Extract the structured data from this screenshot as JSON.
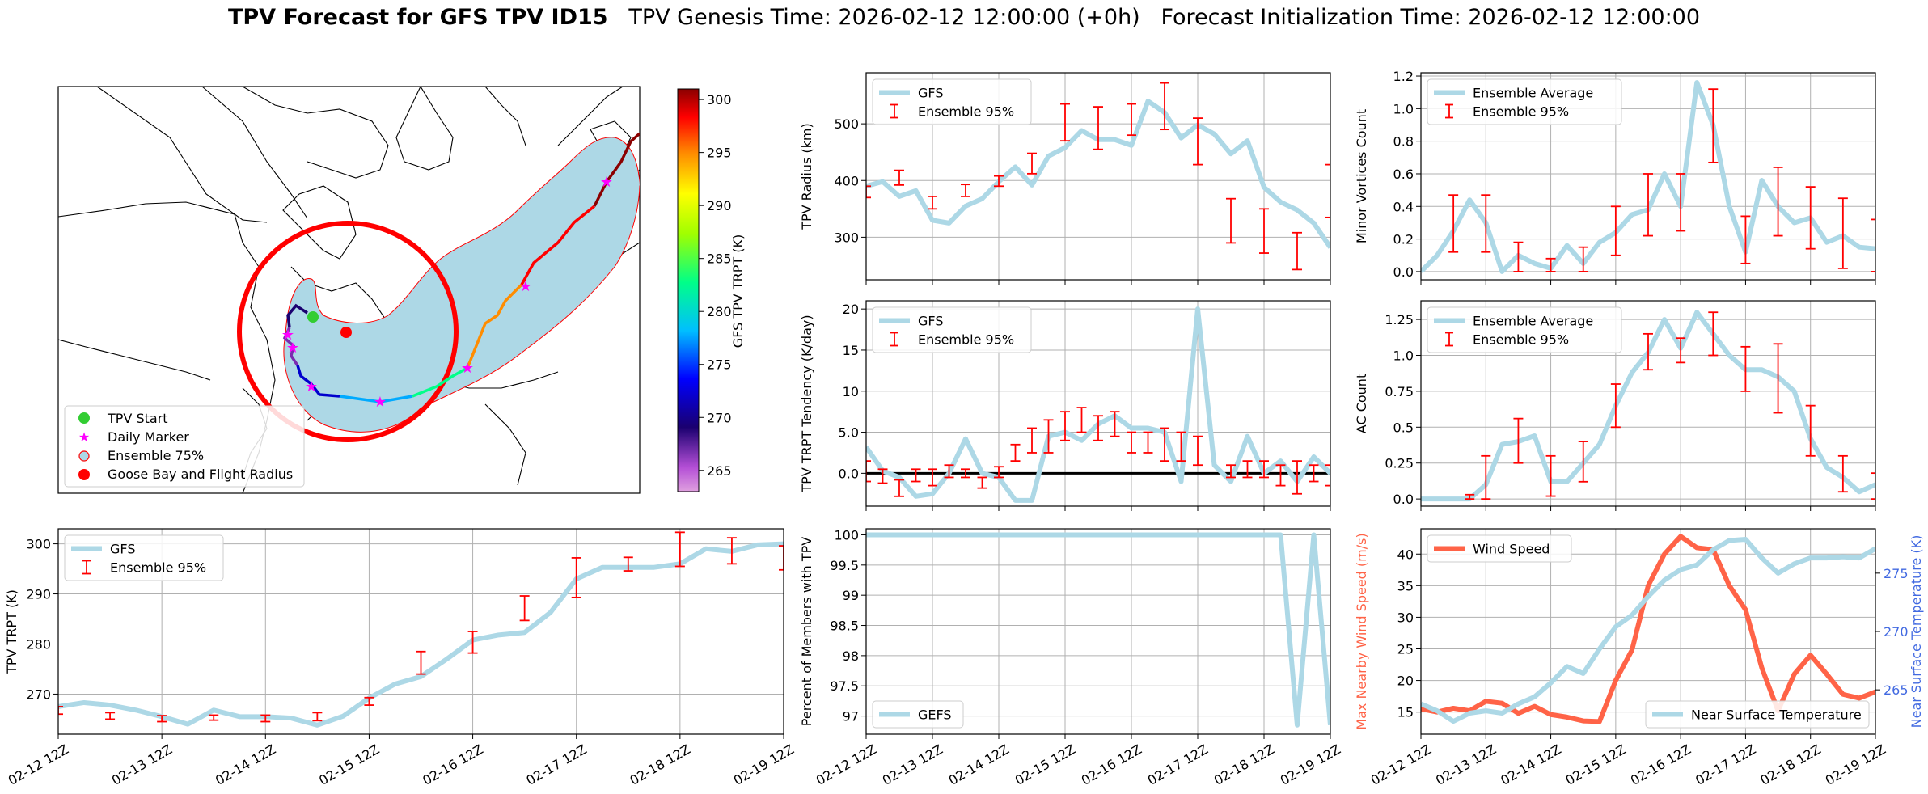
{
  "title": {
    "bold": "TPV Forecast for GFS TPV ID15",
    "rest": "   TPV Genesis Time: 2026-02-12 12:00:00 (+0h)   Forecast Initialization Time: 2026-02-12 12:00:00"
  },
  "colors": {
    "gfs": "#add8e6",
    "ens": "#ff0000",
    "wind": "#ff6347",
    "temp_axis": "#4169e1",
    "cone": "#add8e6"
  },
  "x_ticks": [
    "02-12 12Z",
    "02-13 12Z",
    "02-14 12Z",
    "02-15 12Z",
    "02-16 12Z",
    "02-17 12Z",
    "02-18 12Z",
    "02-19 12Z"
  ],
  "map": {
    "legend": [
      "TPV Start",
      "Daily Marker",
      "Ensemble 75%",
      "Goose Bay and Flight Radius"
    ],
    "colorbar": {
      "label": "GFS TPV TRPT (K)",
      "ticks": [
        300,
        295,
        290,
        285,
        280,
        275,
        270,
        265
      ],
      "range": [
        263,
        301
      ]
    }
  },
  "chart_data": [
    {
      "id": "radius",
      "type": "line",
      "ylabel": "TPV Radius (km)",
      "ylim": [
        225,
        590
      ],
      "yticks": [
        300,
        400,
        500
      ],
      "legend": [
        "GFS",
        "Ensemble 95%"
      ],
      "legend_pos": "top-left",
      "series": [
        {
          "name": "GFS",
          "x": [
            0,
            0.25,
            0.5,
            0.75,
            1,
            1.25,
            1.5,
            1.75,
            2,
            2.25,
            2.5,
            2.75,
            3,
            3.25,
            3.5,
            3.75,
            4,
            4.25,
            4.5,
            4.75,
            5,
            5.25,
            5.5,
            5.75,
            6,
            6.25,
            6.5,
            6.75,
            7
          ],
          "values": [
            390,
            398,
            372,
            382,
            330,
            325,
            355,
            368,
            398,
            424,
            392,
            443,
            458,
            488,
            472,
            472,
            462,
            540,
            520,
            475,
            498,
            482,
            447,
            470,
            388,
            362,
            348,
            325,
            282
          ]
        }
      ],
      "errorbars": [
        {
          "x": 0,
          "low": 370,
          "high": 390
        },
        {
          "x": 0.5,
          "low": 392,
          "high": 418
        },
        {
          "x": 1,
          "low": 350,
          "high": 372
        },
        {
          "x": 1.5,
          "low": 372,
          "high": 393
        },
        {
          "x": 2,
          "low": 390,
          "high": 408
        },
        {
          "x": 2.5,
          "low": 412,
          "high": 448
        },
        {
          "x": 3,
          "low": 470,
          "high": 535
        },
        {
          "x": 3.5,
          "low": 455,
          "high": 530
        },
        {
          "x": 4,
          "low": 480,
          "high": 535
        },
        {
          "x": 4.5,
          "low": 490,
          "high": 572
        },
        {
          "x": 5,
          "low": 428,
          "high": 510
        },
        {
          "x": 5.5,
          "low": 290,
          "high": 368
        },
        {
          "x": 6,
          "low": 272,
          "high": 350
        },
        {
          "x": 6.5,
          "low": 243,
          "high": 308
        },
        {
          "x": 7,
          "low": 335,
          "high": 428
        }
      ]
    },
    {
      "id": "minor",
      "type": "line",
      "ylabel": "Minor Vortices Count",
      "ylim": [
        -0.05,
        1.22
      ],
      "yticks": [
        0.0,
        0.2,
        0.4,
        0.6,
        0.8,
        1.0,
        1.2
      ],
      "legend": [
        "Ensemble Average",
        "Ensemble 95%"
      ],
      "legend_pos": "top-left",
      "series": [
        {
          "name": "Ensemble Average",
          "x": [
            0,
            0.25,
            0.5,
            0.75,
            1,
            1.25,
            1.5,
            1.75,
            2,
            2.25,
            2.5,
            2.75,
            3,
            3.25,
            3.5,
            3.75,
            4,
            4.25,
            4.5,
            4.75,
            5,
            5.25,
            5.5,
            5.75,
            6,
            6.25,
            6.5,
            6.75,
            7
          ],
          "values": [
            0.0,
            0.1,
            0.25,
            0.44,
            0.3,
            0.0,
            0.1,
            0.05,
            0.02,
            0.16,
            0.05,
            0.18,
            0.24,
            0.35,
            0.38,
            0.6,
            0.4,
            1.16,
            0.9,
            0.4,
            0.12,
            0.56,
            0.4,
            0.3,
            0.33,
            0.18,
            0.22,
            0.15,
            0.14
          ]
        }
      ],
      "errorbars": [
        {
          "x": 0.5,
          "low": 0.12,
          "high": 0.47
        },
        {
          "x": 1,
          "low": 0.12,
          "high": 0.47
        },
        {
          "x": 1.5,
          "low": 0.0,
          "high": 0.18
        },
        {
          "x": 2,
          "low": 0.0,
          "high": 0.08
        },
        {
          "x": 2.5,
          "low": 0.0,
          "high": 0.15
        },
        {
          "x": 3,
          "low": 0.1,
          "high": 0.4
        },
        {
          "x": 3.5,
          "low": 0.22,
          "high": 0.6
        },
        {
          "x": 4,
          "low": 0.25,
          "high": 0.6
        },
        {
          "x": 4.5,
          "low": 0.67,
          "high": 1.12
        },
        {
          "x": 5,
          "low": 0.05,
          "high": 0.34
        },
        {
          "x": 5.5,
          "low": 0.22,
          "high": 0.64
        },
        {
          "x": 6,
          "low": 0.14,
          "high": 0.52
        },
        {
          "x": 6.5,
          "low": 0.02,
          "high": 0.45
        },
        {
          "x": 7,
          "low": 0.0,
          "high": 0.32
        }
      ]
    },
    {
      "id": "tendency",
      "type": "line",
      "ylabel": "TPV TRPT Tendency (K/day)",
      "ylim": [
        -4,
        21
      ],
      "yticks": [
        0,
        5,
        10,
        15,
        20
      ],
      "legend": [
        "GFS",
        "Ensemble 95%"
      ],
      "legend_pos": "top-left",
      "zero_line": true,
      "series": [
        {
          "name": "GFS",
          "x": [
            0,
            0.25,
            0.5,
            0.75,
            1,
            1.25,
            1.5,
            1.75,
            2,
            2.25,
            2.5,
            2.75,
            3,
            3.25,
            3.5,
            3.75,
            4,
            4.25,
            4.5,
            4.75,
            5,
            5.25,
            5.5,
            5.75,
            6,
            6.25,
            6.5,
            6.75,
            7
          ],
          "values": [
            3.2,
            0.3,
            -0.5,
            -2.8,
            -2.5,
            0.0,
            4.2,
            0.0,
            -0.5,
            -3.3,
            -3.3,
            4.5,
            5.0,
            4.0,
            6.0,
            7.0,
            5.5,
            5.5,
            5.0,
            -1.0,
            20.0,
            1.0,
            -1.0,
            4.5,
            0.0,
            1.5,
            -1.0,
            2.0,
            0.0
          ]
        }
      ],
      "errorbars": [
        {
          "x": 0,
          "low": -1,
          "high": 1.5
        },
        {
          "x": 0.25,
          "low": -1.2,
          "high": 0.5
        },
        {
          "x": 0.5,
          "low": -2.8,
          "high": -0.8
        },
        {
          "x": 0.75,
          "low": -1.0,
          "high": 0.5
        },
        {
          "x": 1,
          "low": -1.5,
          "high": 0.5
        },
        {
          "x": 1.25,
          "low": -0.5,
          "high": 1.0
        },
        {
          "x": 1.5,
          "low": -0.5,
          "high": 0.5
        },
        {
          "x": 1.75,
          "low": -1.8,
          "high": -0.5
        },
        {
          "x": 2,
          "low": -0.5,
          "high": 0.8
        },
        {
          "x": 2.25,
          "low": 1.5,
          "high": 3.5
        },
        {
          "x": 2.5,
          "low": 2.5,
          "high": 5.5
        },
        {
          "x": 2.75,
          "low": 2.5,
          "high": 6.5
        },
        {
          "x": 3,
          "low": 4.0,
          "high": 7.5
        },
        {
          "x": 3.25,
          "low": 5.0,
          "high": 8.0
        },
        {
          "x": 3.5,
          "low": 4.0,
          "high": 7.0
        },
        {
          "x": 3.75,
          "low": 4.5,
          "high": 7.5
        },
        {
          "x": 4,
          "low": 2.5,
          "high": 5.0
        },
        {
          "x": 4.25,
          "low": 2.5,
          "high": 5.0
        },
        {
          "x": 4.5,
          "low": 1.5,
          "high": 5.5
        },
        {
          "x": 4.75,
          "low": 1.5,
          "high": 5.0
        },
        {
          "x": 5,
          "low": 1.0,
          "high": 4.5
        },
        {
          "x": 5.5,
          "low": -0.5,
          "high": 1.0
        },
        {
          "x": 5.75,
          "low": -0.5,
          "high": 1.5
        },
        {
          "x": 6,
          "low": -0.5,
          "high": 1.5
        },
        {
          "x": 6.25,
          "low": -1.5,
          "high": 1.0
        },
        {
          "x": 6.5,
          "low": -2.5,
          "high": 1.5
        },
        {
          "x": 6.75,
          "low": -1.0,
          "high": 1.0
        },
        {
          "x": 7,
          "low": -1.5,
          "high": 1.0
        }
      ]
    },
    {
      "id": "ac",
      "type": "line",
      "ylabel": "AC Count",
      "ylim": [
        -0.05,
        1.38
      ],
      "yticks": [
        0.0,
        0.25,
        0.5,
        0.75,
        1.0,
        1.25
      ],
      "legend": [
        "Ensemble Average",
        "Ensemble 95%"
      ],
      "legend_pos": "top-left",
      "series": [
        {
          "name": "Ensemble Average",
          "x": [
            0,
            0.25,
            0.5,
            0.75,
            1,
            1.25,
            1.5,
            1.75,
            2,
            2.25,
            2.5,
            2.75,
            3,
            3.25,
            3.5,
            3.75,
            4,
            4.25,
            4.5,
            4.75,
            5,
            5.25,
            5.5,
            5.75,
            6,
            6.25,
            6.5,
            6.75,
            7
          ],
          "values": [
            0.0,
            0.0,
            0.0,
            0.0,
            0.1,
            0.38,
            0.4,
            0.44,
            0.12,
            0.12,
            0.25,
            0.38,
            0.65,
            0.88,
            1.02,
            1.25,
            1.05,
            1.3,
            1.15,
            1.0,
            0.9,
            0.9,
            0.85,
            0.75,
            0.42,
            0.22,
            0.15,
            0.05,
            0.1
          ]
        }
      ],
      "errorbars": [
        {
          "x": 0.75,
          "low": 0.0,
          "high": 0.03
        },
        {
          "x": 1,
          "low": 0.0,
          "high": 0.3
        },
        {
          "x": 1.5,
          "low": 0.25,
          "high": 0.56
        },
        {
          "x": 2,
          "low": 0.02,
          "high": 0.3
        },
        {
          "x": 2.5,
          "low": 0.12,
          "high": 0.4
        },
        {
          "x": 3,
          "low": 0.5,
          "high": 0.8
        },
        {
          "x": 3.5,
          "low": 0.9,
          "high": 1.15
        },
        {
          "x": 4,
          "low": 0.95,
          "high": 1.12
        },
        {
          "x": 4.5,
          "low": 1.0,
          "high": 1.3
        },
        {
          "x": 5,
          "low": 0.75,
          "high": 1.06
        },
        {
          "x": 5.5,
          "low": 0.6,
          "high": 1.08
        },
        {
          "x": 6,
          "low": 0.3,
          "high": 0.65
        },
        {
          "x": 6.5,
          "low": 0.05,
          "high": 0.3
        },
        {
          "x": 7,
          "low": 0.0,
          "high": 0.18
        }
      ]
    },
    {
      "id": "trpt",
      "type": "line",
      "ylabel": "TPV TRPT (K)",
      "ylim": [
        262,
        303
      ],
      "yticks": [
        270,
        280,
        290,
        300
      ],
      "legend": [
        "GFS",
        "Ensemble 95%"
      ],
      "legend_pos": "top-left",
      "series": [
        {
          "name": "GFS",
          "x": [
            0,
            0.25,
            0.5,
            0.75,
            1,
            1.25,
            1.5,
            1.75,
            2,
            2.25,
            2.5,
            2.75,
            3,
            3.25,
            3.5,
            3.75,
            4,
            4.25,
            4.5,
            4.75,
            5,
            5.25,
            5.5,
            5.75,
            6,
            6.25,
            6.5,
            6.75,
            7
          ],
          "values": [
            267.5,
            268.3,
            267.8,
            266.8,
            265.5,
            264.0,
            266.8,
            265.5,
            265.5,
            265.2,
            263.8,
            265.6,
            269.2,
            272.0,
            273.5,
            277.0,
            280.8,
            281.8,
            282.3,
            286.3,
            293.0,
            295.3,
            295.3,
            295.3,
            296.0,
            299.0,
            298.5,
            299.8,
            300.0
          ]
        }
      ],
      "errorbars": [
        {
          "x": 0,
          "low": 266,
          "high": 267.5
        },
        {
          "x": 0.5,
          "low": 265,
          "high": 266.3
        },
        {
          "x": 1,
          "low": 264.5,
          "high": 265.7
        },
        {
          "x": 1.5,
          "low": 264.8,
          "high": 265.8
        },
        {
          "x": 2,
          "low": 264.5,
          "high": 265.8
        },
        {
          "x": 2.5,
          "low": 264.7,
          "high": 266.3
        },
        {
          "x": 3,
          "low": 267.8,
          "high": 269.3
        },
        {
          "x": 3.5,
          "low": 274.0,
          "high": 278.5
        },
        {
          "x": 4,
          "low": 278.2,
          "high": 282.5
        },
        {
          "x": 4.5,
          "low": 284.7,
          "high": 289.6
        },
        {
          "x": 5,
          "low": 289.3,
          "high": 297.2
        },
        {
          "x": 5.5,
          "low": 294.6,
          "high": 297.3
        },
        {
          "x": 6,
          "low": 295.5,
          "high": 302.3
        },
        {
          "x": 6.5,
          "low": 296.0,
          "high": 301.2
        },
        {
          "x": 7,
          "low": 294.8,
          "high": 299.6
        }
      ]
    },
    {
      "id": "pct",
      "type": "line",
      "ylabel": "Percent of Members with TPV",
      "ylim": [
        96.7,
        100.1
      ],
      "yticks": [
        97.0,
        97.5,
        98.0,
        98.5,
        99.0,
        99.5,
        100.0
      ],
      "legend": [
        "GEFS"
      ],
      "legend_pos": "bottom-left",
      "series": [
        {
          "name": "GEFS",
          "x": [
            0,
            6.0,
            6.25,
            6.5,
            6.75,
            7
          ],
          "values": [
            100,
            100,
            100,
            96.85,
            100,
            96.85
          ]
        }
      ],
      "errorbars": []
    },
    {
      "id": "wind",
      "type": "line",
      "ylabel": "Max Nearby Wind Speed (m/s)",
      "ylabel_right": "Near Surface Temperature (K)",
      "ylim": [
        11.5,
        44
      ],
      "yticks": [
        15,
        20,
        25,
        30,
        35,
        40
      ],
      "ylim_right": [
        261.2,
        278.8
      ],
      "yticks_right": [
        265,
        270,
        275
      ],
      "legend": [
        "Wind Speed"
      ],
      "legend_right": [
        "Near Surface Temperature"
      ],
      "legend_pos": "top-left",
      "legend_right_pos": "bottom-right",
      "series": [
        {
          "name": "Wind Speed",
          "axis": "left",
          "x": [
            0,
            0.25,
            0.5,
            0.75,
            1,
            1.25,
            1.5,
            1.75,
            2,
            2.25,
            2.5,
            2.75,
            3,
            3.25,
            3.5,
            3.75,
            4,
            4.25,
            4.5,
            4.75,
            5,
            5.25,
            5.5,
            5.75,
            6,
            6.25,
            6.5,
            6.75,
            7
          ],
          "values": [
            15.5,
            15.0,
            15.6,
            15.2,
            16.7,
            16.4,
            14.8,
            15.9,
            14.6,
            14.2,
            13.6,
            13.5,
            20.0,
            24.8,
            35.0,
            40.0,
            42.8,
            41.0,
            40.7,
            35.0,
            31.2,
            22.0,
            15.2,
            21.0,
            24.0,
            21.0,
            17.8,
            17.2,
            18.2
          ]
        },
        {
          "name": "Near Surface Temperature",
          "axis": "right",
          "x": [
            0,
            0.25,
            0.5,
            0.75,
            1,
            1.25,
            1.5,
            1.75,
            2,
            2.25,
            2.5,
            2.75,
            3,
            3.25,
            3.5,
            3.75,
            4,
            4.25,
            4.5,
            4.75,
            5,
            5.25,
            5.5,
            5.75,
            6,
            6.25,
            6.5,
            6.75,
            7
          ],
          "values": [
            263.8,
            263.2,
            262.3,
            263.0,
            263.2,
            263.0,
            263.8,
            264.4,
            265.6,
            267.0,
            266.4,
            268.5,
            270.4,
            271.4,
            273.0,
            274.4,
            275.3,
            275.7,
            277.0,
            277.8,
            277.9,
            276.3,
            275.0,
            275.8,
            276.3,
            276.3,
            276.4,
            276.3,
            277.1
          ]
        }
      ],
      "errorbars": []
    }
  ]
}
